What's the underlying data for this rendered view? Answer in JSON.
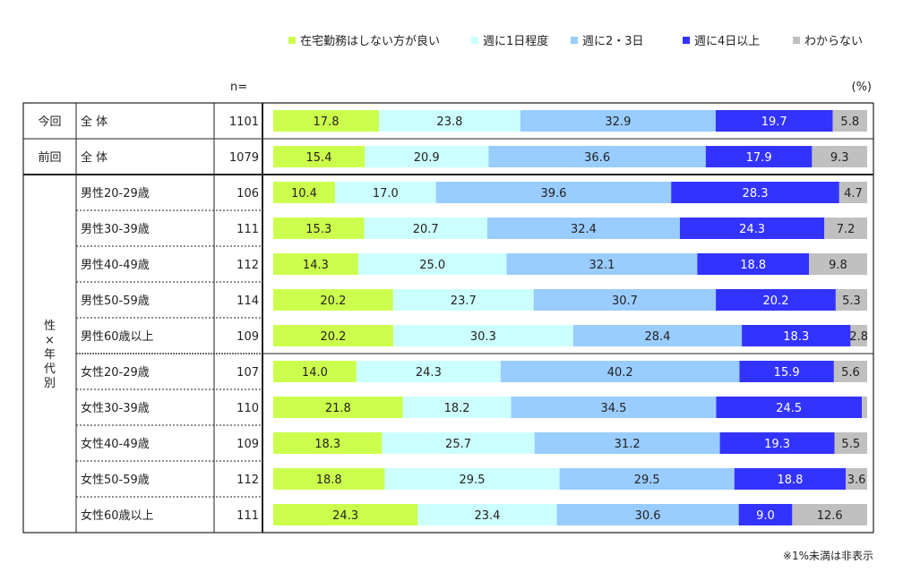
{
  "chart_data": {
    "type": "bar",
    "orientation": "horizontal",
    "stacked": true,
    "percent": true,
    "unit_label": "(%)",
    "n_label": "n=",
    "legend_position": "top-right",
    "series": [
      {
        "name": "在宅勤務はしない方が良い",
        "color": "#ccff4d"
      },
      {
        "name": "週に1日程度",
        "color": "#ccffff"
      },
      {
        "name": "週に2・3日",
        "color": "#99ccff"
      },
      {
        "name": "週に4日以上",
        "color": "#3333ff"
      },
      {
        "name": "わからない",
        "color": "#c0c0c0"
      }
    ],
    "groups": [
      {
        "label": "今回",
        "rows": [
          0
        ]
      },
      {
        "label": "前回",
        "rows": [
          1
        ]
      },
      {
        "label": "性×年代別",
        "rows": [
          2,
          3,
          4,
          5,
          6,
          7,
          8,
          9,
          10,
          11
        ]
      }
    ],
    "rows": [
      {
        "label": "全 体",
        "n": "1101",
        "values": [
          17.8,
          23.8,
          32.9,
          19.7,
          5.8
        ]
      },
      {
        "label": "全 体",
        "n": "1079",
        "values": [
          15.4,
          20.9,
          36.6,
          17.9,
          9.3
        ]
      },
      {
        "label": "男性20-29歳",
        "n": "106",
        "values": [
          10.4,
          17.0,
          39.6,
          28.3,
          4.7
        ]
      },
      {
        "label": "男性30-39歳",
        "n": "111",
        "values": [
          15.3,
          20.7,
          32.4,
          24.3,
          7.2
        ]
      },
      {
        "label": "男性40-49歳",
        "n": "112",
        "values": [
          14.3,
          25.0,
          32.1,
          18.8,
          9.8
        ]
      },
      {
        "label": "男性50-59歳",
        "n": "114",
        "values": [
          20.2,
          23.7,
          30.7,
          20.2,
          5.3
        ]
      },
      {
        "label": "男性60歳以上",
        "n": "109",
        "values": [
          20.2,
          30.3,
          28.4,
          18.3,
          2.8
        ]
      },
      {
        "label": "女性20-29歳",
        "n": "107",
        "values": [
          14.0,
          24.3,
          40.2,
          15.9,
          5.6
        ]
      },
      {
        "label": "女性30-39歳",
        "n": "110",
        "values": [
          21.8,
          18.2,
          34.5,
          24.5,
          0.9
        ],
        "hidden_labels": [
          4
        ]
      },
      {
        "label": "女性40-49歳",
        "n": "109",
        "values": [
          18.3,
          25.7,
          31.2,
          19.3,
          5.5
        ]
      },
      {
        "label": "女性50-59歳",
        "n": "112",
        "values": [
          18.8,
          29.5,
          29.5,
          18.8,
          3.6
        ]
      },
      {
        "label": "女性60歳以上",
        "n": "111",
        "values": [
          24.3,
          23.4,
          30.6,
          9.0,
          12.6
        ]
      }
    ],
    "note": "※1%未満は非表示"
  }
}
